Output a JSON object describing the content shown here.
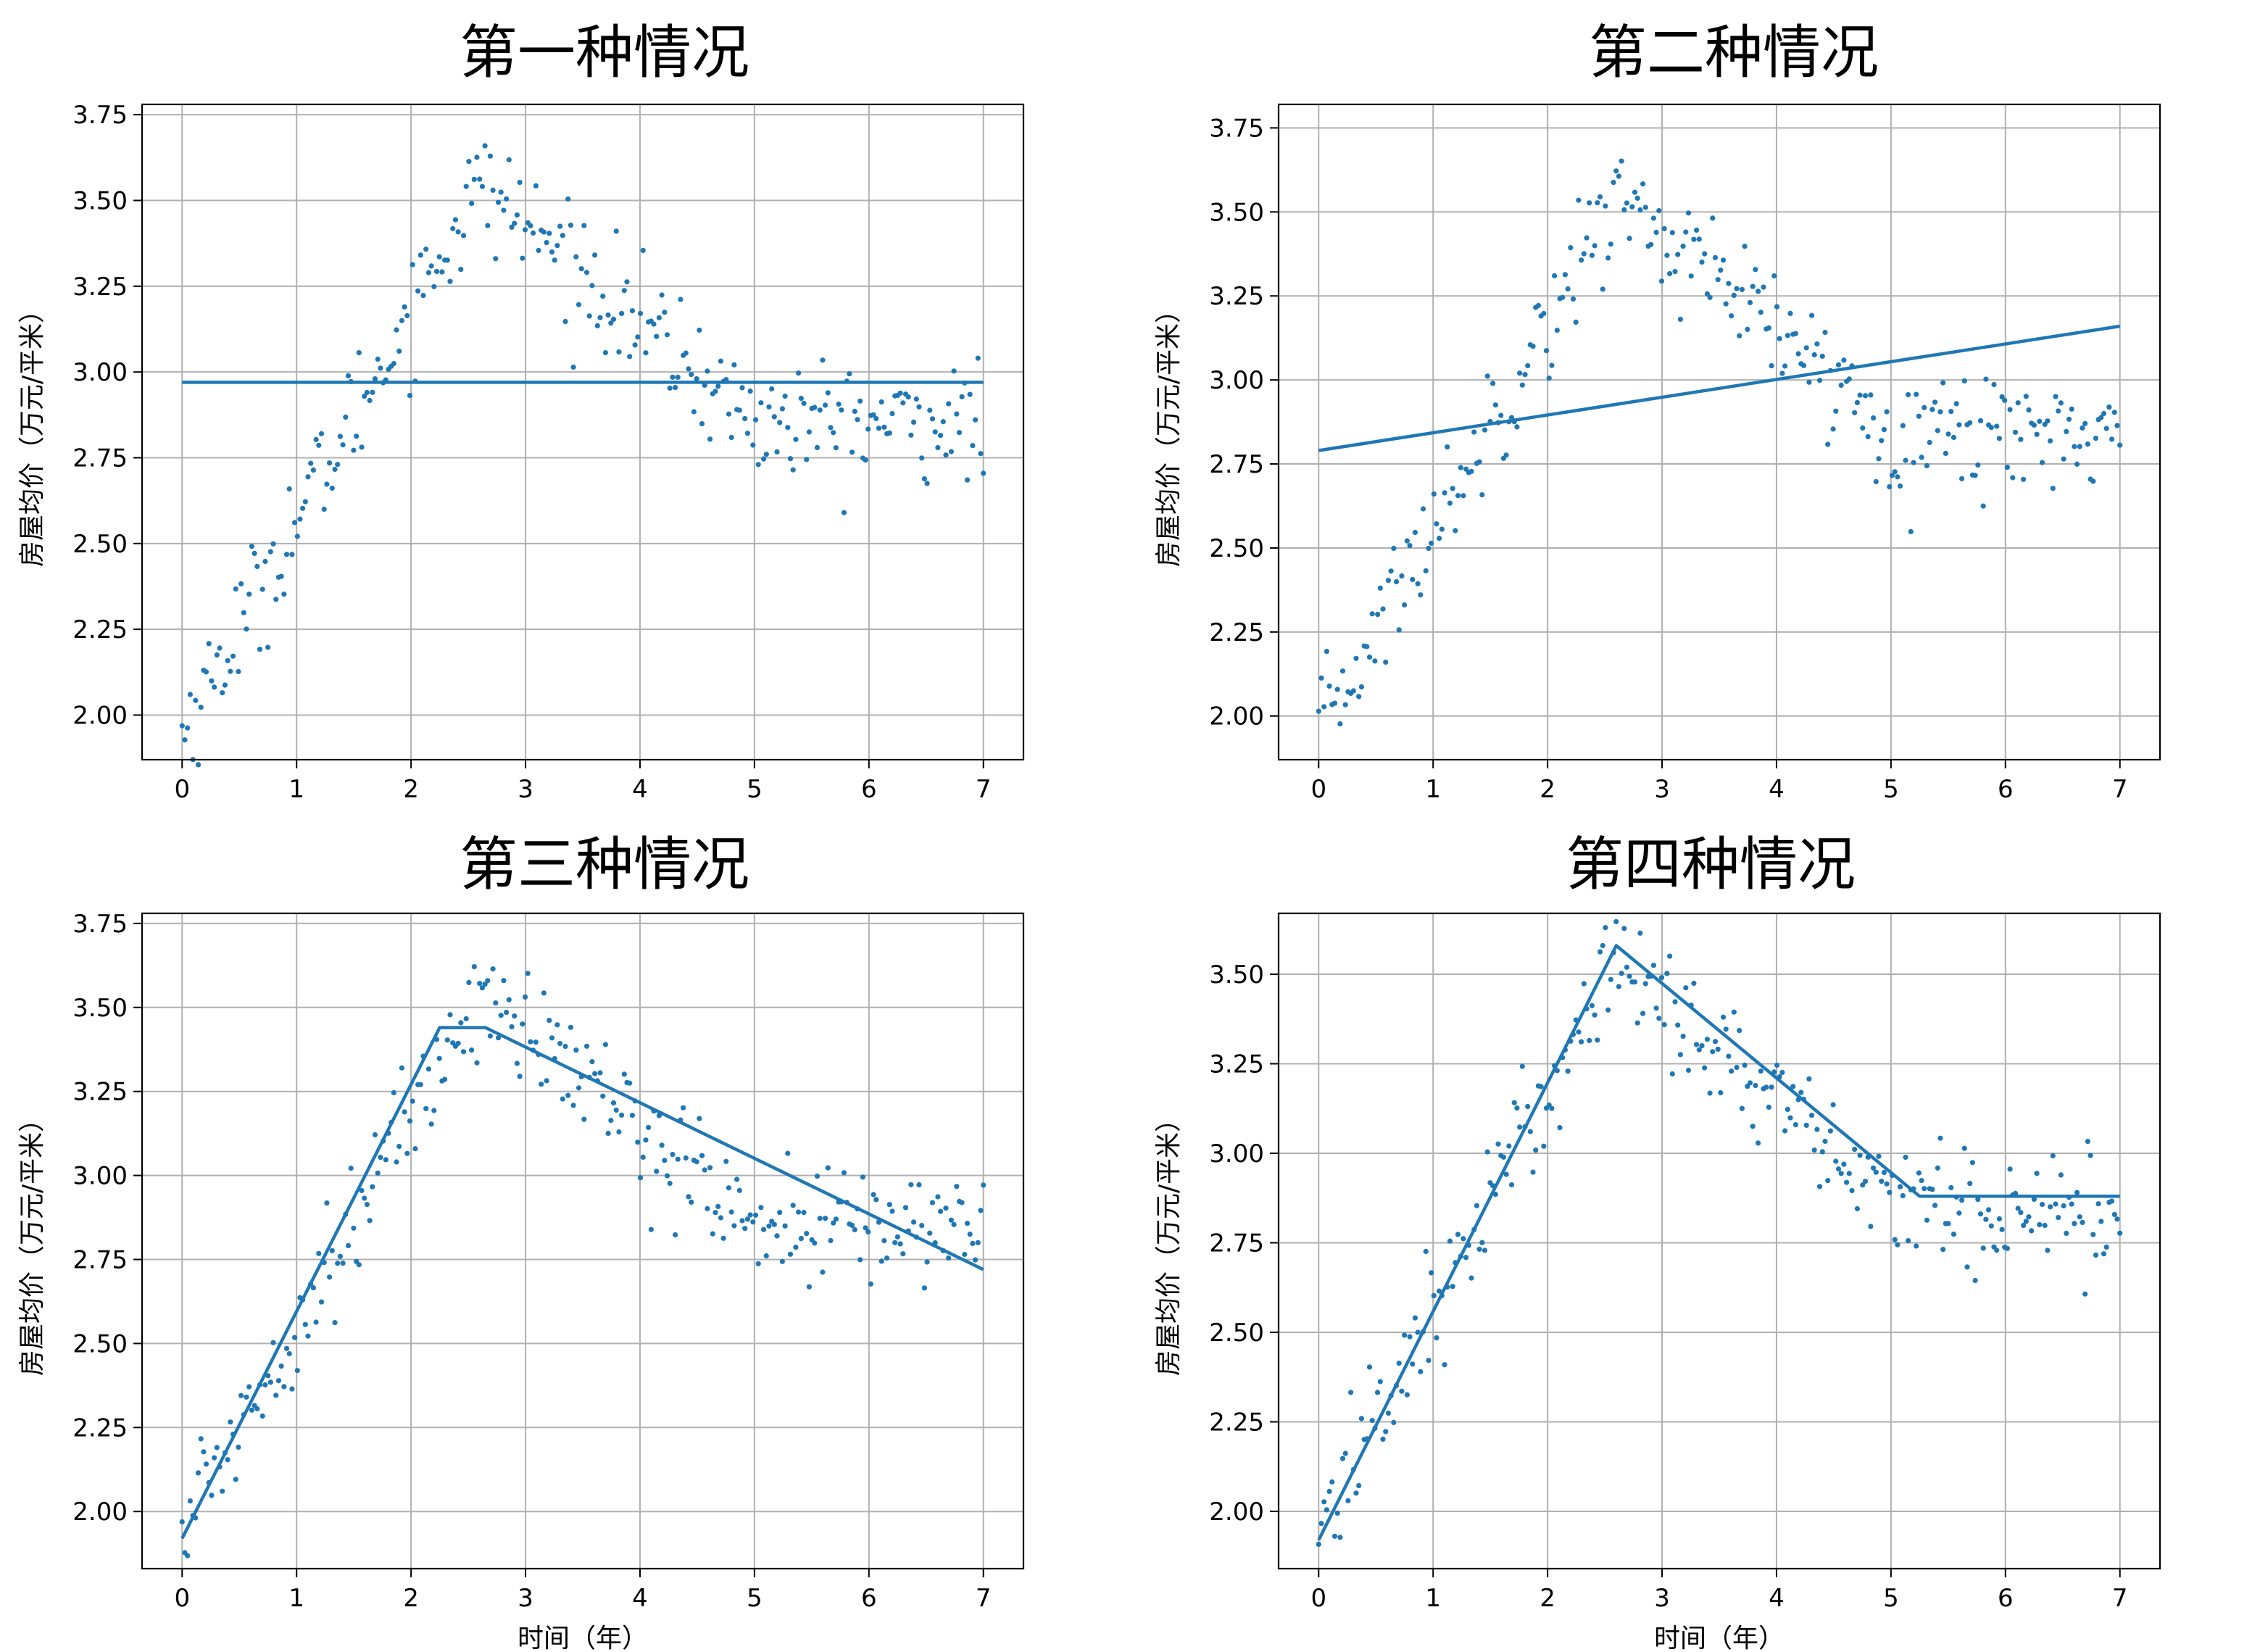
{
  "colors": {
    "series": "#1f77b4",
    "grid": "#b0b0b0",
    "axis": "#000000"
  },
  "chart_data": [
    {
      "type": "scatter",
      "title": "第一种情况",
      "xlabel": "",
      "ylabel": "房屋均价（万元/平米）",
      "xlim": [
        -0.35,
        7.35
      ],
      "ylim": [
        1.87,
        3.78
      ],
      "xticks": [
        0,
        1,
        2,
        3,
        4,
        5,
        6,
        7
      ],
      "yticks": [
        2.0,
        2.25,
        2.5,
        2.75,
        3.0,
        3.25,
        3.5,
        3.75
      ],
      "ytick_labels": [
        "2.00",
        "2.25",
        "2.50",
        "2.75",
        "3.00",
        "3.25",
        "3.50",
        "3.75"
      ],
      "grid": true,
      "fit_line": {
        "x": [
          0,
          7
        ],
        "y": [
          2.97,
          2.97
        ]
      }
    },
    {
      "type": "scatter",
      "title": "第二种情况",
      "xlabel": "",
      "ylabel": "房屋均价（万元/平米）",
      "xlim": [
        -0.35,
        7.35
      ],
      "ylim": [
        1.87,
        3.82
      ],
      "xticks": [
        0,
        1,
        2,
        3,
        4,
        5,
        6,
        7
      ],
      "yticks": [
        2.0,
        2.25,
        2.5,
        2.75,
        3.0,
        3.25,
        3.5,
        3.75
      ],
      "ytick_labels": [
        "2.00",
        "2.25",
        "2.50",
        "2.75",
        "3.00",
        "3.25",
        "3.50",
        "3.75"
      ],
      "grid": true,
      "fit_line": {
        "x": [
          0,
          7
        ],
        "y": [
          2.79,
          3.16
        ]
      }
    },
    {
      "type": "scatter",
      "title": "第三种情况",
      "xlabel": "时间（年）",
      "ylabel": "房屋均价（万元/平米）",
      "xlim": [
        -0.35,
        7.35
      ],
      "ylim": [
        1.83,
        3.78
      ],
      "xticks": [
        0,
        1,
        2,
        3,
        4,
        5,
        6,
        7
      ],
      "yticks": [
        2.0,
        2.25,
        2.5,
        2.75,
        3.0,
        3.25,
        3.5,
        3.75
      ],
      "ytick_labels": [
        "2.00",
        "2.25",
        "2.50",
        "2.75",
        "3.00",
        "3.25",
        "3.50",
        "3.75"
      ],
      "grid": true,
      "fit_line": {
        "x": [
          0,
          2.25,
          2.65,
          7
        ],
        "y": [
          1.92,
          3.44,
          3.44,
          2.72
        ]
      }
    },
    {
      "type": "scatter",
      "title": "第四种情况",
      "xlabel": "时间（年）",
      "ylabel": "房屋均价（万元/平米）",
      "xlim": [
        -0.35,
        7.35
      ],
      "ylim": [
        1.84,
        3.67
      ],
      "xticks": [
        0,
        1,
        2,
        3,
        4,
        5,
        6,
        7
      ],
      "yticks": [
        2.0,
        2.25,
        2.5,
        2.75,
        3.0,
        3.25,
        3.5
      ],
      "ytick_labels": [
        "2.00",
        "2.25",
        "2.50",
        "2.75",
        "3.00",
        "3.25",
        "3.50"
      ],
      "grid": true,
      "fit_line": {
        "x": [
          0,
          2.6,
          5.25,
          7
        ],
        "y": [
          1.92,
          3.58,
          2.88,
          2.88
        ]
      }
    }
  ]
}
